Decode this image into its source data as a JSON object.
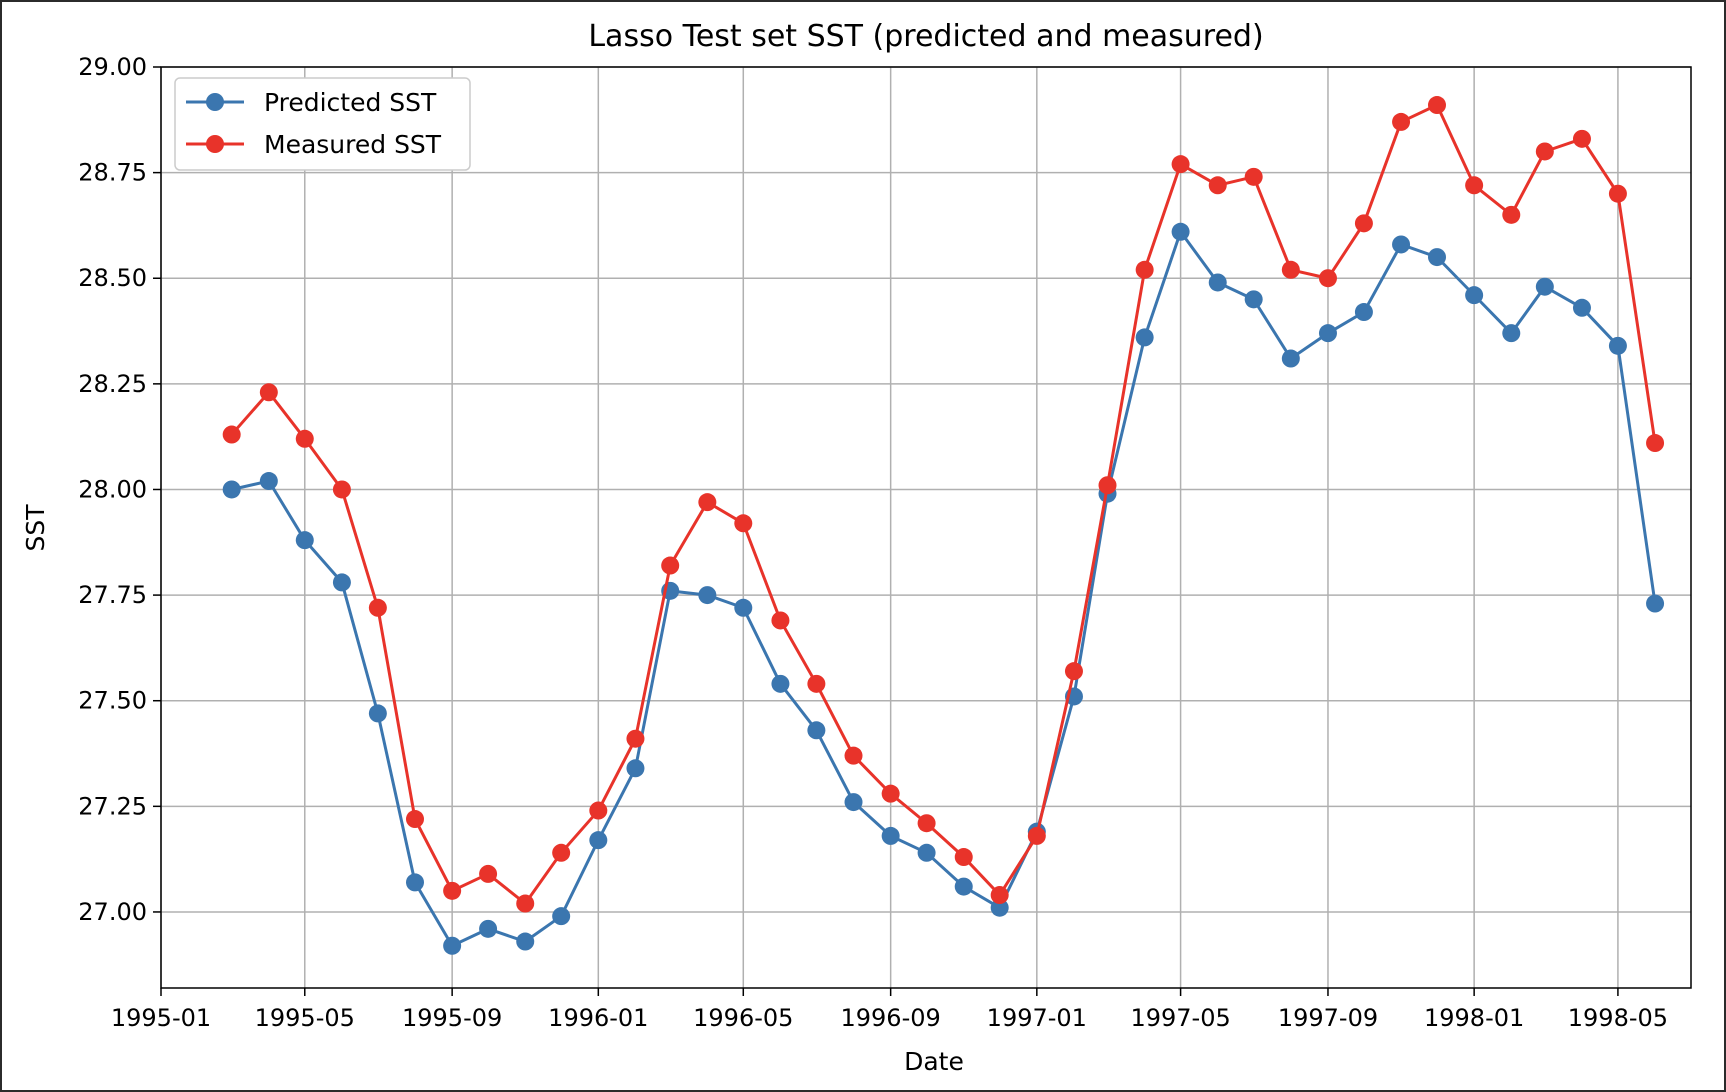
{
  "chart_data": {
    "type": "line",
    "title": "Lasso Test set SST (predicted and measured)",
    "xlabel": "Date",
    "ylabel": "SST",
    "x_axis_type": "date",
    "x_ticks": [
      "1995-01",
      "1995-05",
      "1995-09",
      "1996-01",
      "1996-05",
      "1996-09",
      "1997-01",
      "1997-05",
      "1997-09",
      "1998-01",
      "1998-05"
    ],
    "y_ticks": [
      "27.00",
      "27.25",
      "27.50",
      "27.75",
      "28.00",
      "28.25",
      "28.50",
      "28.75",
      "29.00"
    ],
    "ylim": [
      26.82,
      29.0
    ],
    "xlim": [
      "1995-01-01",
      "1998-07-01"
    ],
    "grid": true,
    "legend_position": "upper-left",
    "x": [
      "1995-03-01",
      "1995-04-01",
      "1995-05-01",
      "1995-06-01",
      "1995-07-01",
      "1995-08-01",
      "1995-09-01",
      "1995-10-01",
      "1995-11-01",
      "1995-12-01",
      "1996-01-01",
      "1996-02-01",
      "1996-03-01",
      "1996-04-01",
      "1996-05-01",
      "1996-06-01",
      "1996-07-01",
      "1996-08-01",
      "1996-09-01",
      "1996-10-01",
      "1996-11-01",
      "1996-12-01",
      "1997-01-01",
      "1997-02-01",
      "1997-03-01",
      "1997-04-01",
      "1997-05-01",
      "1997-06-01",
      "1997-07-01",
      "1997-08-01",
      "1997-09-01",
      "1997-10-01",
      "1997-11-01",
      "1997-12-01",
      "1998-01-01",
      "1998-02-01",
      "1998-03-01",
      "1998-04-01",
      "1998-05-01",
      "1998-06-01"
    ],
    "series": [
      {
        "name": "Predicted SST",
        "color": "#3b76af",
        "values": [
          28.0,
          28.02,
          27.88,
          27.78,
          27.47,
          27.07,
          26.92,
          26.96,
          26.93,
          26.99,
          27.17,
          27.34,
          27.76,
          27.75,
          27.72,
          27.54,
          27.43,
          27.26,
          27.18,
          27.14,
          27.06,
          27.01,
          27.19,
          27.51,
          27.99,
          28.36,
          28.61,
          28.49,
          28.45,
          28.31,
          28.37,
          28.42,
          28.58,
          28.55,
          28.46,
          28.37,
          28.48,
          28.43,
          28.34,
          27.73
        ]
      },
      {
        "name": "Measured SST",
        "color": "#e8332a",
        "values": [
          28.13,
          28.23,
          28.12,
          28.0,
          27.72,
          27.22,
          27.05,
          27.09,
          27.02,
          27.14,
          27.24,
          27.41,
          27.82,
          27.97,
          27.92,
          27.69,
          27.54,
          27.37,
          27.28,
          27.21,
          27.13,
          27.04,
          27.18,
          27.57,
          28.01,
          28.52,
          28.77,
          28.72,
          28.74,
          28.52,
          28.5,
          28.63,
          28.87,
          28.91,
          28.72,
          28.65,
          28.8,
          28.83,
          28.7,
          28.11
        ]
      }
    ]
  }
}
